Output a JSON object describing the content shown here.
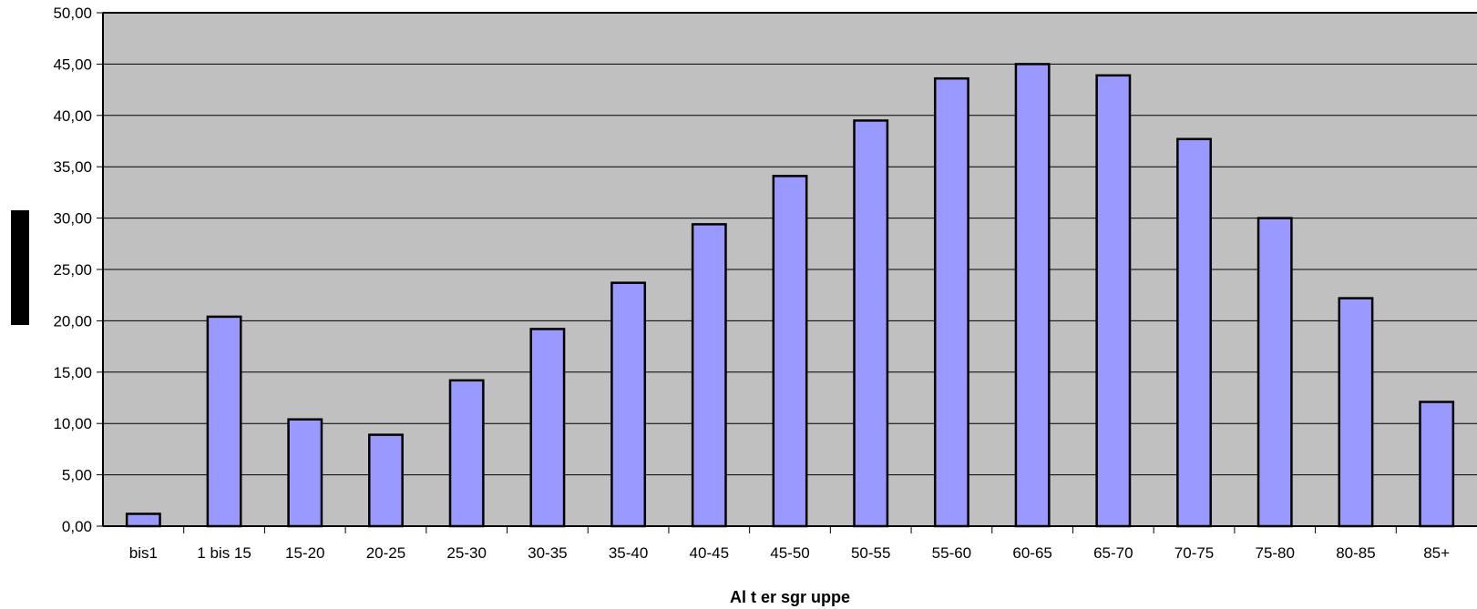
{
  "chart_data": {
    "type": "bar",
    "title": "",
    "xlabel": "Al t er sgr uppe",
    "ylabel": "",
    "ylim": [
      0,
      50
    ],
    "y_ticks": [
      "0,00",
      "5,00",
      "10,00",
      "15,00",
      "20,00",
      "25,00",
      "30,00",
      "35,00",
      "40,00",
      "45,00",
      "50,00"
    ],
    "y_tick_values": [
      0,
      5,
      10,
      15,
      20,
      25,
      30,
      35,
      40,
      45,
      50
    ],
    "grid": "horizontal",
    "legend": "none",
    "categories": [
      "bis1",
      "1 bis 15",
      "15-20",
      "20-25",
      "25-30",
      "30-35",
      "35-40",
      "40-45",
      "45-50",
      "50-55",
      "55-60",
      "60-65",
      "65-70",
      "70-75",
      "75-80",
      "80-85",
      "85+"
    ],
    "values": [
      1.2,
      20.4,
      10.4,
      8.9,
      14.2,
      19.2,
      23.7,
      29.4,
      34.1,
      39.5,
      43.6,
      45.0,
      43.9,
      37.7,
      30.0,
      22.2,
      12.1
    ]
  },
  "colors": {
    "plot_background": "#c0c0c0",
    "bar_fill": "#9999ff",
    "bar_stroke": "#000000",
    "gridline": "#000000",
    "axis": "#000000"
  }
}
